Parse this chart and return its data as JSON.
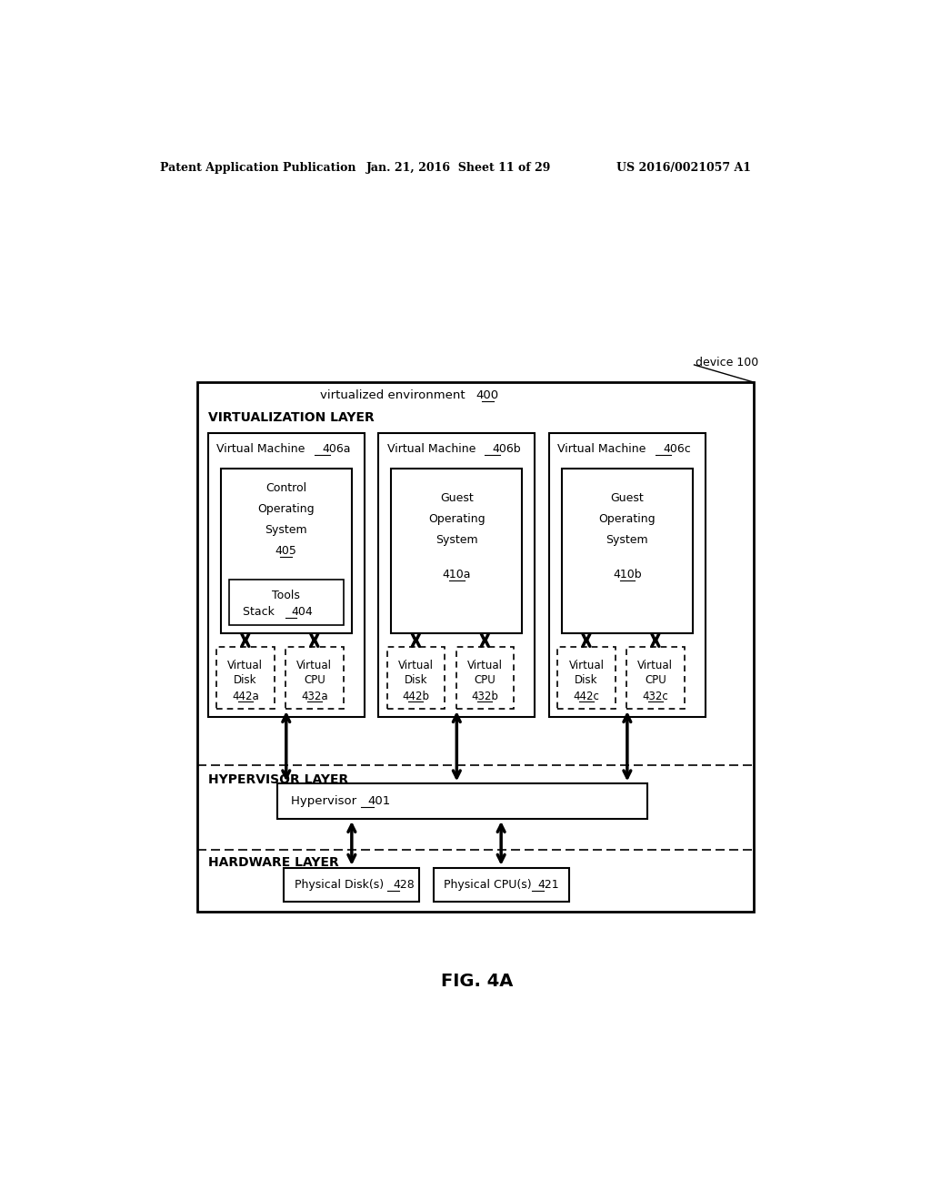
{
  "header_left": "Patent Application Publication",
  "header_mid": "Jan. 21, 2016  Sheet 11 of 29",
  "header_right": "US 2016/0021057 A1",
  "device_label": "device 100",
  "virt_env_label": "virtualized environment",
  "virt_env_num": "400",
  "virt_layer_label": "VIRTUALIZATION LAYER",
  "vm_nums": [
    "406a",
    "406b",
    "406c"
  ],
  "vdisk_nums": [
    "442a",
    "442b",
    "442c"
  ],
  "vcpu_nums": [
    "432a",
    "432b",
    "432c"
  ],
  "hypervisor_layer_label": "HYPERVISOR LAYER",
  "hypervisor_label": "Hypervisor",
  "hypervisor_num": "401",
  "hardware_layer_label": "HARDWARE LAYER",
  "phys_disk_label": "Physical Disk(s)",
  "phys_disk_num": "428",
  "phys_cpu_label": "Physical CPU(s)",
  "phys_cpu_num": "421",
  "fig_label": "FIG. 4A",
  "bg_color": "#ffffff",
  "box_color": "#000000"
}
